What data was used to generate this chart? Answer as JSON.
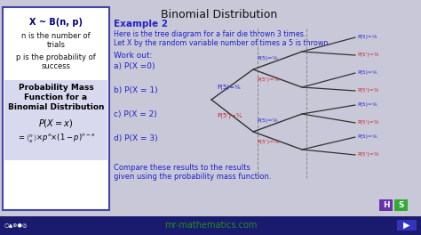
{
  "title": "Binomial Distribution",
  "title_color": "#000000",
  "bg_color": "#c8c8d8",
  "left_box_bg": "#ffffff",
  "left_box_border": "#4444aa",
  "left_title": "X ~ B(n, p)",
  "pmf_title": "Probability Mass",
  "pmf_line2": "Function for a",
  "pmf_line3": "Binomial Distribution",
  "example_title": "Example 2",
  "example_text1": "Here is the tree diagram for a fair die thrown 3 times.",
  "example_text2": "Let X by the random variable number of times a 5 is thrown.",
  "workout0": "Work out:",
  "workout1": "a) P(X =0)",
  "workout2": "b) P(X = 1)",
  "workout3": "c) P(X = 2)",
  "workout4": "d) P(X = 3)",
  "compare_text1": "Compare these results to the results",
  "compare_text2": "given using the probability mass function.",
  "website": "mr-mathematics.com",
  "website_color": "#228B22",
  "blue_color": "#2222cc",
  "red_color": "#cc2222",
  "dark_blue": "#000080",
  "bottom_bar_color": "#1a1a6e",
  "h_button_color": "#6633aa",
  "s_button_color": "#33aa33",
  "nav_button_color": "#3333bb",
  "p5_label": "P(5)=⅙",
  "p5p_label": "P(5')=⅚"
}
